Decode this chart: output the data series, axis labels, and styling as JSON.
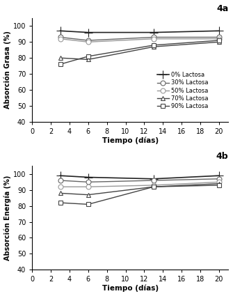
{
  "title_top": "4a",
  "title_bottom": "4b",
  "xlabel": "Tiempo (días)",
  "ylabel_top": "Absorción Grasa (%)",
  "ylabel_bottom": "Absorción Energía (%)",
  "x": [
    3,
    6,
    13,
    20
  ],
  "series_top": {
    "0% Lactosa": [
      97,
      96,
      96,
      97
    ],
    "30% Lactosa": [
      93,
      91,
      93,
      93
    ],
    "50% Lactosa": [
      92,
      90,
      92,
      92
    ],
    "70% Lactosa": [
      80,
      79,
      87,
      90
    ],
    "90% Lactosa": [
      76,
      81,
      88,
      91
    ]
  },
  "series_bottom": {
    "0% Lactosa": [
      99,
      98,
      97,
      99
    ],
    "30% Lactosa": [
      96,
      95,
      96,
      97
    ],
    "50% Lactosa": [
      92,
      92,
      93,
      95
    ],
    "70% Lactosa": [
      88,
      87,
      92,
      94
    ],
    "90% Lactosa": [
      82,
      81,
      92,
      93
    ]
  },
  "markers": [
    "+",
    "o",
    "o",
    "^",
    "s"
  ],
  "ylim": [
    40,
    105
  ],
  "yticks": [
    40,
    50,
    60,
    70,
    80,
    90,
    100
  ],
  "xlim": [
    0,
    21
  ],
  "xticks": [
    0,
    2,
    4,
    6,
    8,
    10,
    12,
    14,
    16,
    18,
    20
  ],
  "legend_labels": [
    "0% Lactosa",
    "30% Lactosa",
    "50% Lactosa",
    "70% Lactosa",
    "90% Lactosa"
  ]
}
